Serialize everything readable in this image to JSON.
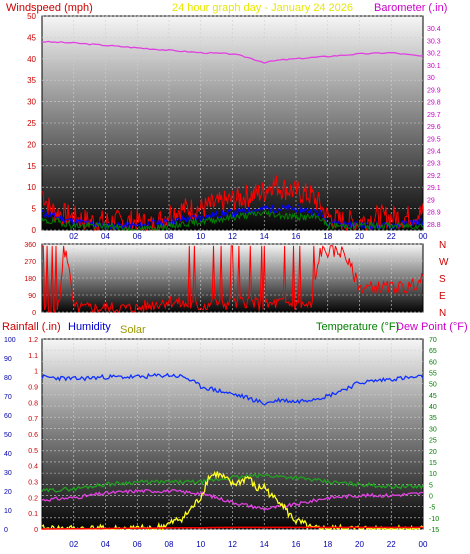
{
  "header": {
    "left_label": "Windspeed (mph)",
    "center_label": "24 hour graph day - January 24 2026",
    "right_label": "Barometer (.in)"
  },
  "bottom_header": {
    "rainfall_label": "Rainfall (.in)",
    "humidity_label": "Humidity",
    "solar_label": "Solar",
    "temperature_label": "Temperature (°F)",
    "dewpoint_label": "Dew Point (°F)"
  },
  "colors": {
    "windspeed": "#ff0000",
    "wind_avg": "#0000ff",
    "wind_low": "#008000",
    "barometer": "#e040e0",
    "humidity": "#1030ff",
    "temperature": "#20a020",
    "dewpoint": "#e040e0",
    "solar": "#ffff20",
    "rainfall": "#ff0000",
    "header_center": "#e8e800",
    "left_axis": "#cc0000",
    "right_axis_pink": "#cc00cc",
    "humidity_label": "#0000cc",
    "solar_label": "#999900",
    "temp_label": "#008000"
  },
  "x_ticks": [
    "02",
    "04",
    "06",
    "08",
    "10",
    "12",
    "14",
    "16",
    "18",
    "20",
    "22",
    "00"
  ],
  "chart_data": [
    {
      "type": "line",
      "panel": "wind_barometer",
      "title": "24 hour graph day - January 24 2026",
      "x_label": "",
      "x_unit": "hour",
      "left_axis": {
        "label": "Windspeed (mph)",
        "ticks": [
          0,
          5,
          10,
          15,
          20,
          25,
          30,
          35,
          40,
          45,
          50
        ],
        "range": [
          0,
          50
        ]
      },
      "right_axis": {
        "label": "Barometer (.in)",
        "ticks": [
          "28.8",
          "28.9",
          "29",
          "29.1",
          "29.2",
          "29.3",
          "29.4",
          "29.5",
          "29.6",
          "29.7",
          "29.8",
          "29.9",
          "30",
          "30.1",
          "30.2",
          "30.3",
          "30.4"
        ],
        "range": [
          28.75,
          30.5
        ]
      },
      "series": [
        {
          "name": "Barometer (.in)",
          "axis": "right",
          "x": [
            0,
            2,
            4,
            6,
            8,
            10,
            12,
            13,
            14,
            15,
            16,
            18,
            20,
            22,
            24
          ],
          "values": [
            30.29,
            30.28,
            30.26,
            30.24,
            30.22,
            30.2,
            30.19,
            30.16,
            30.12,
            30.14,
            30.15,
            30.17,
            30.19,
            30.2,
            30.17
          ]
        },
        {
          "name": "Windspeed (mph)",
          "axis": "left",
          "x": [
            0,
            0.5,
            1,
            2,
            3,
            4,
            5,
            6,
            7,
            8,
            9,
            10,
            11,
            12,
            13,
            14,
            14.5,
            15,
            16,
            17,
            17.5,
            18,
            19,
            20,
            21,
            22,
            23,
            24
          ],
          "values": [
            9,
            5,
            4,
            3,
            2,
            2,
            2,
            2,
            1,
            4,
            5,
            5,
            6,
            7,
            8,
            9,
            11,
            10,
            9,
            8,
            6,
            3,
            2,
            2,
            3,
            3,
            3,
            4
          ]
        },
        {
          "name": "Wind average",
          "axis": "left",
          "x": [
            0,
            1,
            2,
            4,
            6,
            8,
            10,
            12,
            14,
            16,
            17.5,
            18,
            20,
            22,
            24
          ],
          "values": [
            4,
            3,
            2,
            1,
            1,
            2,
            3,
            4,
            5,
            5,
            4,
            2,
            1,
            1,
            2
          ]
        },
        {
          "name": "Wind low",
          "axis": "left",
          "x": [
            0,
            1,
            2,
            4,
            6,
            8,
            10,
            12,
            14,
            16,
            17.5,
            18,
            20,
            22,
            24
          ],
          "values": [
            2,
            2,
            1,
            1,
            0,
            1,
            2,
            3,
            4,
            3,
            3,
            1,
            1,
            1,
            1
          ]
        }
      ]
    },
    {
      "type": "line",
      "panel": "wind_direction",
      "left_axis": {
        "ticks": [
          0,
          90,
          180,
          270,
          360
        ],
        "range": [
          0,
          360
        ]
      },
      "right_axis": {
        "ticks": [
          "N",
          "W",
          "S",
          "E",
          "N"
        ]
      },
      "series": [
        {
          "name": "Wind direction",
          "x": [
            0,
            1,
            1.5,
            2,
            6,
            7,
            8,
            9,
            10,
            11,
            12,
            13,
            14,
            15,
            16,
            17,
            17.5,
            18,
            19,
            20,
            22,
            23,
            24
          ],
          "values": [
            10,
            10,
            350,
            20,
            20,
            40,
            60,
            40,
            30,
            50,
            40,
            60,
            30,
            50,
            40,
            30,
            320,
            320,
            320,
            130,
            130,
            130,
            170
          ]
        }
      ]
    },
    {
      "type": "line",
      "panel": "rain_humidity_solar_temp",
      "left_axis": {
        "label": "Rainfall (.in)",
        "ticks": [
          "0",
          "0.1",
          "0.2",
          "0.3",
          "0.4",
          "0.5",
          "0.6",
          "0.7",
          "0.8",
          "0.9",
          "1",
          "1.1",
          "1.2"
        ],
        "range": [
          0,
          1.2
        ]
      },
      "left_outer_axis": {
        "label": "Humidity",
        "ticks": [
          0,
          10,
          20,
          30,
          40,
          50,
          60,
          70,
          80,
          90,
          100
        ],
        "range": [
          0,
          100
        ]
      },
      "right_axis": {
        "label": "Temperature (°F)",
        "ticks": [
          -15,
          -10,
          -5,
          0,
          5,
          10,
          15,
          20,
          25,
          30,
          35,
          40,
          45,
          50,
          55,
          60,
          65,
          70
        ],
        "range": [
          -15,
          70
        ]
      },
      "series": [
        {
          "name": "Humidity",
          "axis": "left_outer",
          "x": [
            0,
            2,
            4,
            6,
            8,
            9,
            10,
            12,
            13,
            14,
            15,
            16,
            18,
            20,
            22,
            24
          ],
          "values": [
            80,
            79,
            80,
            80,
            81,
            80,
            75,
            71,
            69,
            66,
            68,
            67,
            70,
            77,
            79,
            80
          ]
        },
        {
          "name": "Temperature (°F)",
          "axis": "right",
          "x": [
            0,
            2,
            4,
            6,
            8,
            10,
            12,
            14,
            16,
            18,
            20,
            22,
            24
          ],
          "values": [
            2,
            3,
            5,
            6,
            6,
            6,
            8,
            9,
            8,
            6,
            5,
            4,
            4
          ]
        },
        {
          "name": "Dew Point (°F)",
          "axis": "right",
          "x": [
            0,
            2,
            4,
            6,
            8,
            10,
            12,
            14,
            16,
            18,
            20,
            22,
            24
          ],
          "values": [
            -2,
            -1,
            1,
            2,
            2,
            1,
            -3,
            -6,
            -4,
            -1,
            0,
            0,
            1
          ]
        },
        {
          "name": "Solar",
          "axis": "left",
          "x": [
            0,
            7,
            8,
            9,
            10,
            10.5,
            11,
            11.5,
            12,
            12.5,
            13,
            13.5,
            14,
            14.5,
            15,
            15.5,
            16,
            16.5,
            17,
            24
          ],
          "values": [
            0,
            0,
            0.03,
            0.08,
            0.2,
            0.33,
            0.35,
            0.32,
            0.28,
            0.3,
            0.33,
            0.25,
            0.27,
            0.2,
            0.18,
            0.1,
            0.05,
            0.03,
            0,
            0
          ]
        },
        {
          "name": "Rainfall (.in)",
          "axis": "left",
          "x": [
            0,
            12,
            24
          ],
          "values": [
            0,
            0.01,
            0.01
          ]
        }
      ]
    }
  ]
}
